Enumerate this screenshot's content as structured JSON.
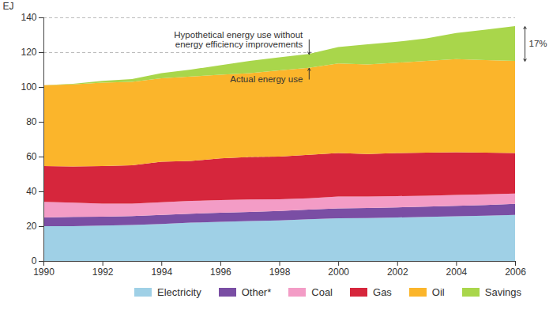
{
  "chart_data": {
    "type": "area",
    "stacked": true,
    "ylabel": "EJ",
    "x": [
      1990,
      1991,
      1992,
      1993,
      1994,
      1995,
      1996,
      1997,
      1998,
      1999,
      2000,
      2001,
      2002,
      2003,
      2004,
      2005,
      2006
    ],
    "series": [
      {
        "name": "Electricity",
        "color": "#9fd0e6",
        "values": [
          20,
          20,
          20.3,
          20.7,
          21.3,
          22,
          22.5,
          23,
          23.3,
          24,
          24.5,
          24.7,
          25,
          25.3,
          25.7,
          26,
          26.5
        ]
      },
      {
        "name": "Other*",
        "color": "#7a4ea4",
        "values": [
          5,
          5.3,
          5.2,
          5.1,
          5.2,
          5.2,
          5.2,
          5.2,
          5.4,
          5.5,
          5.7,
          5.8,
          5.8,
          5.9,
          6,
          6.2,
          6.3
        ]
      },
      {
        "name": "Coal",
        "color": "#f39cc6",
        "values": [
          9,
          8.2,
          7.5,
          7.2,
          7.3,
          7.3,
          7.3,
          7.1,
          6.8,
          6.5,
          6.8,
          6.5,
          6.5,
          6.3,
          6.3,
          6.1,
          6
        ]
      },
      {
        "name": "Gas",
        "color": "#d6263c",
        "values": [
          20.5,
          20.8,
          21.5,
          22,
          23.2,
          23,
          24,
          24.5,
          24.5,
          25,
          25,
          24.5,
          24.7,
          24.8,
          24.5,
          24,
          23.2
        ]
      },
      {
        "name": "Oil",
        "color": "#fbb52b",
        "values": [
          46.5,
          47.2,
          48,
          48,
          48,
          48.5,
          48,
          48.2,
          49.5,
          50,
          51.5,
          51.5,
          52,
          52.7,
          53.5,
          53.2,
          53
        ]
      },
      {
        "name": "Savings",
        "color": "#a9d64b",
        "values": [
          0,
          0.3,
          1,
          1.5,
          3,
          4,
          5.5,
          7,
          7.5,
          8,
          9.5,
          11.5,
          12,
          13,
          15,
          17.5,
          20
        ]
      }
    ],
    "xlim": [
      1990,
      2006
    ],
    "ylim": [
      0,
      140
    ],
    "xticks": [
      1990,
      1992,
      1994,
      1996,
      1998,
      2000,
      2002,
      2004,
      2006
    ],
    "yticks": [
      0,
      20,
      40,
      60,
      80,
      100,
      120,
      140
    ],
    "grid": true,
    "legend": "bottom",
    "annotations": [
      "Hypothetical energy use without energy efficiency improvements",
      "Actual energy use",
      "17%"
    ]
  }
}
